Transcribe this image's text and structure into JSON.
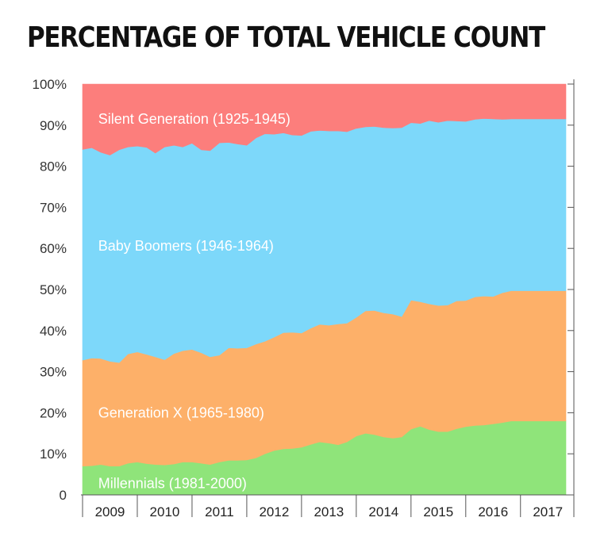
{
  "title": "PERCENTAGE OF TOTAL VEHICLE COUNT",
  "chart_data": {
    "type": "area",
    "stacked": true,
    "title": "PERCENTAGE OF TOTAL VEHICLE COUNT",
    "xlabel": "",
    "ylabel": "",
    "ylim": [
      0,
      100
    ],
    "y_ticks": [
      "0",
      "10%",
      "20%",
      "30%",
      "40%",
      "50%",
      "60%",
      "70%",
      "80%",
      "90%",
      "100%"
    ],
    "x_ticks": [
      "2009",
      "2010",
      "2011",
      "2012",
      "2013",
      "2014",
      "2015",
      "2016",
      "2017"
    ],
    "x": [
      2008.5,
      2008.67,
      2008.83,
      2009,
      2009.17,
      2009.33,
      2009.5,
      2009.67,
      2009.83,
      2010,
      2010.17,
      2010.33,
      2010.5,
      2010.67,
      2010.83,
      2011,
      2011.17,
      2011.33,
      2011.5,
      2011.67,
      2011.83,
      2012,
      2012.17,
      2012.33,
      2012.5,
      2012.67,
      2012.83,
      2013,
      2013.17,
      2013.33,
      2013.5,
      2013.67,
      2013.83,
      2014,
      2014.17,
      2014.33,
      2014.5,
      2014.67,
      2014.83,
      2015,
      2015.17,
      2015.33,
      2015.5,
      2015.67,
      2015.83,
      2016,
      2016.17,
      2016.33,
      2016.5,
      2016.67,
      2016.83,
      2017,
      2017.17,
      2017.33
    ],
    "series": [
      {
        "name": "Millennials (1981-2000)",
        "color": "#8fe47a",
        "values": [
          7.0,
          7.1,
          7.4,
          7.0,
          7.0,
          7.7,
          8.0,
          7.6,
          7.4,
          7.3,
          7.5,
          8.0,
          8.0,
          7.7,
          7.4,
          8.0,
          8.4,
          8.4,
          8.5,
          9.0,
          10.0,
          10.8,
          11.2,
          11.3,
          11.6,
          12.3,
          12.9,
          12.6,
          12.2,
          12.9,
          14.3,
          15.0,
          14.7,
          14.1,
          13.8,
          14.1,
          16.0,
          16.7,
          15.9,
          15.4,
          15.4,
          16.1,
          16.6,
          16.9,
          17.0,
          17.3,
          17.6,
          18.0,
          18.0,
          18.0,
          18.0,
          18.0,
          18.0,
          18.0
        ]
      },
      {
        "name": "Generation X (1965-1980)",
        "color": "#fdb069",
        "values": [
          25.8,
          26.2,
          25.8,
          25.5,
          25.2,
          26.6,
          26.8,
          26.6,
          26.2,
          25.6,
          26.9,
          27.1,
          27.4,
          26.9,
          26.2,
          26.0,
          27.4,
          27.3,
          27.3,
          27.7,
          27.4,
          27.6,
          28.3,
          28.3,
          27.8,
          28.3,
          28.6,
          28.7,
          29.4,
          28.9,
          28.9,
          29.8,
          30.2,
          30.2,
          30.2,
          29.3,
          31.4,
          30.3,
          30.6,
          30.7,
          30.8,
          31.1,
          30.7,
          31.3,
          31.4,
          31.0,
          31.6,
          31.7,
          31.7,
          31.7,
          31.7,
          31.7,
          31.7,
          31.7
        ]
      },
      {
        "name": "Baby Boomers (1946-1964)",
        "color": "#7dd8fa",
        "values": [
          51.3,
          51.2,
          50.2,
          50.2,
          51.8,
          50.4,
          50.1,
          50.4,
          49.6,
          51.8,
          50.7,
          49.6,
          50.2,
          49.4,
          50.2,
          51.7,
          50.0,
          49.7,
          49.3,
          50.2,
          50.5,
          49.4,
          48.6,
          48.0,
          48.1,
          47.9,
          47.2,
          47.3,
          47.0,
          46.6,
          46.0,
          44.8,
          44.8,
          45.1,
          45.3,
          46.0,
          43.2,
          43.4,
          44.6,
          44.6,
          44.9,
          43.8,
          43.6,
          43.2,
          43.2,
          43.2,
          42.2,
          41.8,
          41.8,
          41.8,
          41.8,
          41.8,
          41.8,
          41.8
        ]
      },
      {
        "name": "Silent Generation (1925-1945)",
        "color": "#fc7e7c",
        "values": [
          15.9,
          15.5,
          16.6,
          17.3,
          16.0,
          15.3,
          15.1,
          15.4,
          16.8,
          15.3,
          14.9,
          15.3,
          14.4,
          16.0,
          16.2,
          14.3,
          14.2,
          14.6,
          14.9,
          13.1,
          12.1,
          12.2,
          11.9,
          12.4,
          12.5,
          11.5,
          11.3,
          11.4,
          11.4,
          11.6,
          10.8,
          10.4,
          10.3,
          10.6,
          10.7,
          10.6,
          9.4,
          9.6,
          8.9,
          9.3,
          8.9,
          9.0,
          9.1,
          8.6,
          8.4,
          8.5,
          8.6,
          8.5,
          8.5,
          8.5,
          8.5,
          8.5,
          8.5,
          8.5
        ]
      }
    ],
    "grid": false,
    "legend": "inline labels"
  }
}
